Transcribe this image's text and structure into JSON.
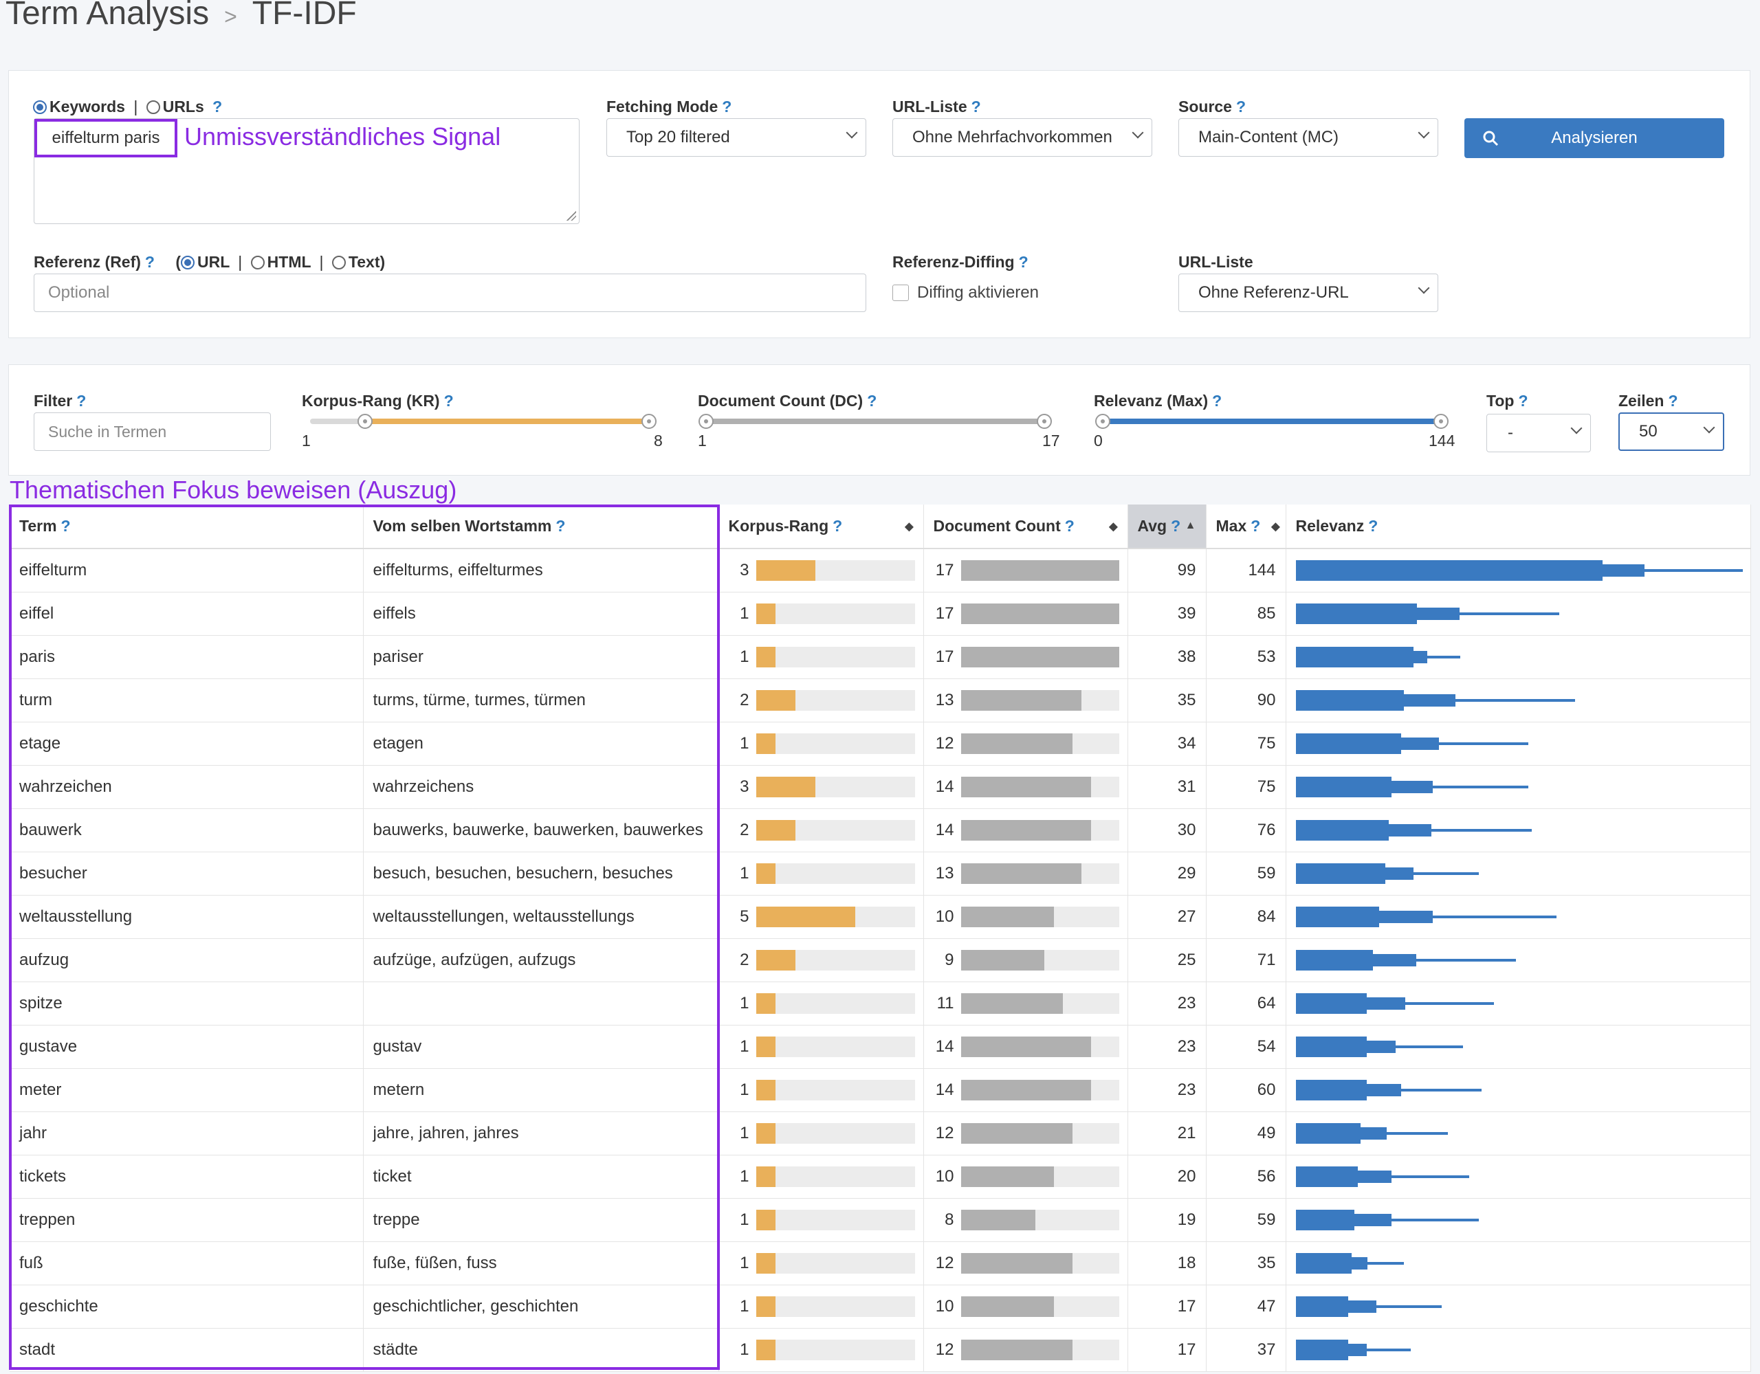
{
  "breadcrumb": {
    "section": "Term Analysis",
    "separator": ">",
    "page": "TF-IDF"
  },
  "form": {
    "mode_keywords": "Keywords",
    "mode_divider": "|",
    "mode_urls": "URLs",
    "help": "?",
    "keywords_value": "eiffelturm paris",
    "keywords_annotation": "Unmissverständliches Signal",
    "fetching_mode": {
      "label": "Fetching Mode",
      "value": "Top 20 filtered"
    },
    "url_list": {
      "label": "URL-Liste",
      "value": "Ohne Mehrfachvorkommen"
    },
    "source": {
      "label": "Source",
      "value": "Main-Content (MC)"
    },
    "analyze_button": "Analysieren",
    "reference": {
      "label": "Referenz (Ref)",
      "paren_open": "(",
      "opt_url": "URL",
      "opt_html": "HTML",
      "opt_text": "Text)",
      "placeholder": "Optional"
    },
    "ref_diffing": {
      "label": "Referenz-Diffing",
      "checkbox_label": "Diffing aktivieren"
    },
    "ref_url_list": {
      "label": "URL-Liste",
      "value": "Ohne Referenz-URL"
    }
  },
  "filters": {
    "filter": {
      "label": "Filter",
      "placeholder": "Suche in Termen"
    },
    "korpus_rang": {
      "label": "Korpus-Rang (KR)",
      "min": "1",
      "max": "8",
      "low": 2,
      "high": 8,
      "range": [
        1,
        8
      ]
    },
    "document_count": {
      "label": "Document Count (DC)",
      "min": "1",
      "max": "17",
      "low": 1,
      "high": 17,
      "range": [
        1,
        17
      ]
    },
    "relevanz": {
      "label": "Relevanz (Max)",
      "min": "0",
      "max": "144",
      "low": 0,
      "high": 144,
      "range": [
        0,
        144
      ]
    },
    "top": {
      "label": "Top",
      "value": "-"
    },
    "zeilen": {
      "label": "Zeilen",
      "value": "50"
    }
  },
  "table_annotation": "Thematischen Fokus beweisen (Auszug)",
  "table": {
    "headers": {
      "term": "Term",
      "stem": "Vom selben Wortstamm",
      "kr": "Korpus-Rang",
      "dc": "Document Count",
      "avg": "Avg",
      "max": "Max",
      "rel": "Relevanz"
    },
    "kr_max": 8,
    "dc_max": 17,
    "rel_max": 144,
    "colors": {
      "kr": "#e9b05a",
      "dc": "#b0b0b0",
      "rel": "#3a7ac1",
      "annotation": "#8a2be2"
    },
    "rows": [
      {
        "term": "eiffelturm",
        "stem": "eiffelturms, eiffelturmes",
        "kr": "3",
        "dc": "17",
        "avg": "99",
        "max": "144"
      },
      {
        "term": "eiffel",
        "stem": "eiffels",
        "kr": "1",
        "dc": "17",
        "avg": "39",
        "max": "85"
      },
      {
        "term": "paris",
        "stem": "pariser",
        "kr": "1",
        "dc": "17",
        "avg": "38",
        "max": "53"
      },
      {
        "term": "turm",
        "stem": "turms, türme, turmes, türmen",
        "kr": "2",
        "dc": "13",
        "avg": "35",
        "max": "90"
      },
      {
        "term": "etage",
        "stem": "etagen",
        "kr": "1",
        "dc": "12",
        "avg": "34",
        "max": "75"
      },
      {
        "term": "wahrzeichen",
        "stem": "wahrzeichens",
        "kr": "3",
        "dc": "14",
        "avg": "31",
        "max": "75"
      },
      {
        "term": "bauwerk",
        "stem": "bauwerks, bauwerke, bauwerken, bauwerkes",
        "kr": "2",
        "dc": "14",
        "avg": "30",
        "max": "76"
      },
      {
        "term": "besucher",
        "stem": "besuch, besuchen, besuchern, besuches",
        "kr": "1",
        "dc": "13",
        "avg": "29",
        "max": "59"
      },
      {
        "term": "weltausstellung",
        "stem": "weltausstellungen, weltausstellungs",
        "kr": "5",
        "dc": "10",
        "avg": "27",
        "max": "84"
      },
      {
        "term": "aufzug",
        "stem": "aufzüge, aufzügen, aufzugs",
        "kr": "2",
        "dc": "9",
        "avg": "25",
        "max": "71"
      },
      {
        "term": "spitze",
        "stem": "",
        "kr": "1",
        "dc": "11",
        "avg": "23",
        "max": "64"
      },
      {
        "term": "gustave",
        "stem": "gustav",
        "kr": "1",
        "dc": "14",
        "avg": "23",
        "max": "54"
      },
      {
        "term": "meter",
        "stem": "metern",
        "kr": "1",
        "dc": "14",
        "avg": "23",
        "max": "60"
      },
      {
        "term": "jahr",
        "stem": "jahre, jahren, jahres",
        "kr": "1",
        "dc": "12",
        "avg": "21",
        "max": "49"
      },
      {
        "term": "tickets",
        "stem": "ticket",
        "kr": "1",
        "dc": "10",
        "avg": "20",
        "max": "56"
      },
      {
        "term": "treppen",
        "stem": "treppe",
        "kr": "1",
        "dc": "8",
        "avg": "19",
        "max": "59"
      },
      {
        "term": "fuß",
        "stem": "fuße, füßen, fuss",
        "kr": "1",
        "dc": "12",
        "avg": "18",
        "max": "35"
      },
      {
        "term": "geschichte",
        "stem": "geschichtlicher, geschichten",
        "kr": "1",
        "dc": "10",
        "avg": "17",
        "max": "47"
      },
      {
        "term": "stadt",
        "stem": "städte",
        "kr": "1",
        "dc": "12",
        "avg": "17",
        "max": "37"
      }
    ]
  }
}
